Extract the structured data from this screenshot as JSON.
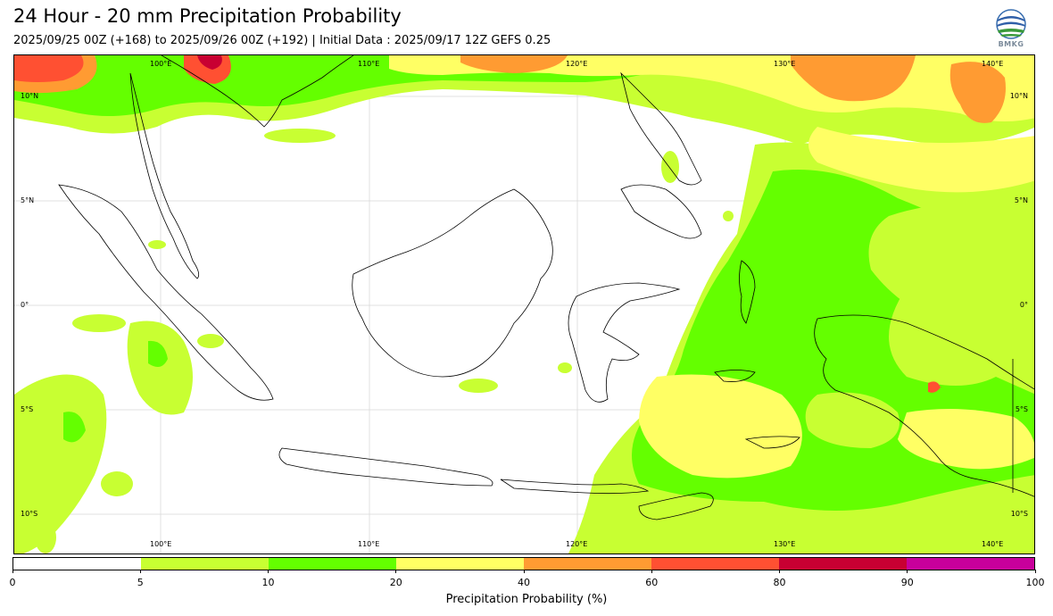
{
  "header": {
    "title": "24 Hour - 20 mm Precipitation Probability",
    "subtitle": "2025/09/25 00Z (+168) to 2025/09/26 00Z (+192) | Initial Data : 2025/09/17 12Z GEFS 0.25"
  },
  "logo": {
    "text": "BMKG",
    "icon": "bmkg-globe-logo"
  },
  "map": {
    "lon_labels": [
      "100°E",
      "110°E",
      "120°E",
      "130°E",
      "140°E"
    ],
    "lat_labels": [
      "10°N",
      "5°N",
      "0°",
      "5°S",
      "10°S"
    ],
    "extent": {
      "lon": [
        93,
        142
      ],
      "lat": [
        -12,
        12
      ]
    }
  },
  "colorbar": {
    "label": "Precipitation Probability (%)",
    "ticks": [
      "0",
      "5",
      "10",
      "20",
      "40",
      "60",
      "80",
      "90",
      "100"
    ],
    "colors": [
      "#ffffff",
      "#c8ff32",
      "#64ff00",
      "#ffff64",
      "#ff9b32",
      "#ff5032",
      "#c80032",
      "#c8009b"
    ]
  }
}
